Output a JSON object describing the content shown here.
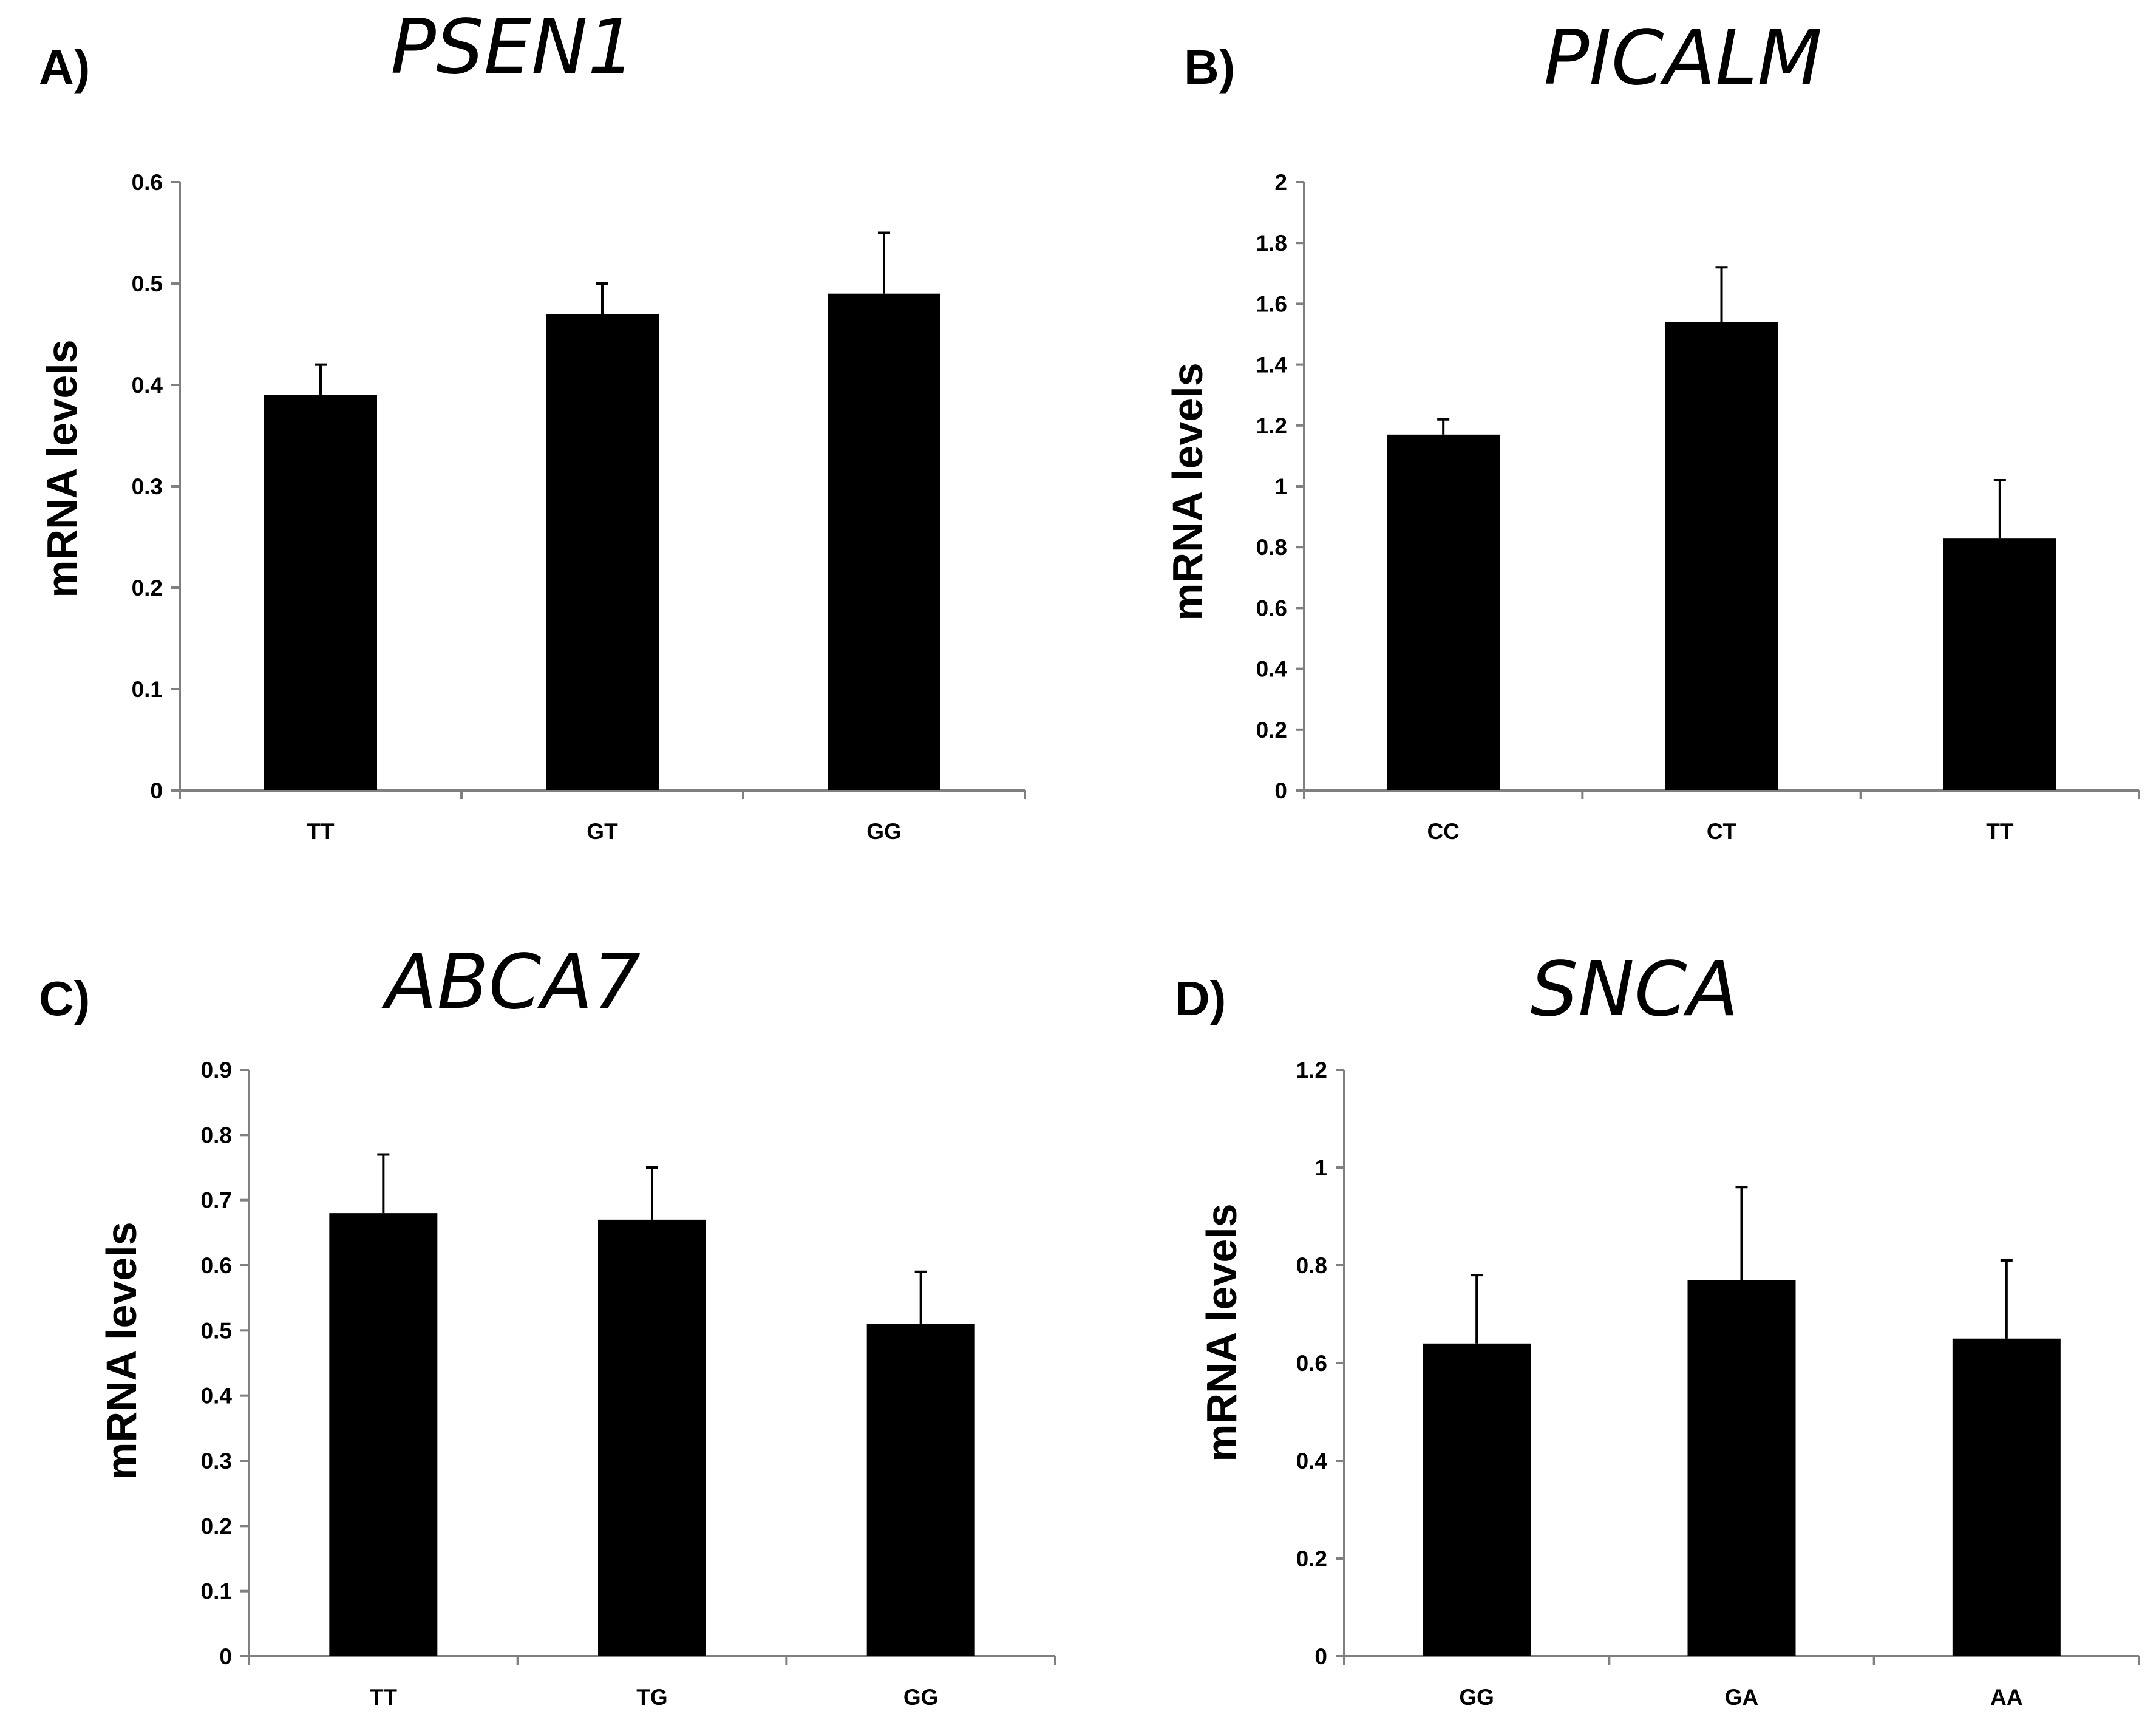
{
  "chart_data": [
    {
      "type": "bar",
      "panel": "A)",
      "title": "PSEN1",
      "xlabel": "",
      "ylabel": "mRNA levels",
      "categories": [
        "TT",
        "GT",
        "GG"
      ],
      "values": [
        0.39,
        0.47,
        0.49
      ],
      "errors": [
        0.03,
        0.03,
        0.06
      ],
      "ylim": [
        0,
        0.6
      ],
      "yticks": [
        "0",
        "0.1",
        "0.2",
        "0.3",
        "0.4",
        "0.5",
        "0.6"
      ],
      "grid": false,
      "color": "#000000"
    },
    {
      "type": "bar",
      "panel": "B)",
      "title": "PICALM",
      "xlabel": "",
      "ylabel": "mRNA levels",
      "categories": [
        "CC",
        "CT",
        "TT"
      ],
      "values": [
        1.17,
        1.54,
        0.83
      ],
      "errors": [
        0.05,
        0.18,
        0.19
      ],
      "ylim": [
        0,
        2
      ],
      "yticks": [
        "0",
        "0.2",
        "0.4",
        "0.6",
        "0.8",
        "1",
        "1.2",
        "1.4",
        "1.6",
        "1.8",
        "2"
      ],
      "grid": false,
      "color": "#000000"
    },
    {
      "type": "bar",
      "panel": "C)",
      "title": "ABCA7",
      "xlabel": "",
      "ylabel": "mRNA levels",
      "categories": [
        "TT",
        "TG",
        "GG"
      ],
      "values": [
        0.68,
        0.67,
        0.51
      ],
      "errors": [
        0.09,
        0.08,
        0.08
      ],
      "ylim": [
        0,
        0.9
      ],
      "yticks": [
        "0",
        "0.1",
        "0.2",
        "0.3",
        "0.4",
        "0.5",
        "0.6",
        "0.7",
        "0.8",
        "0.9"
      ],
      "grid": false,
      "color": "#000000"
    },
    {
      "type": "bar",
      "panel": "D)",
      "title": "SNCA",
      "xlabel": "",
      "ylabel": "mRNA levels",
      "categories": [
        "GG",
        "GA",
        "AA"
      ],
      "values": [
        0.64,
        0.77,
        0.65
      ],
      "errors": [
        0.14,
        0.19,
        0.16
      ],
      "ylim": [
        0,
        1.2
      ],
      "yticks": [
        "0",
        "0.2",
        "0.4",
        "0.6",
        "0.8",
        "1",
        "1.2"
      ],
      "grid": false,
      "color": "#000000"
    }
  ]
}
